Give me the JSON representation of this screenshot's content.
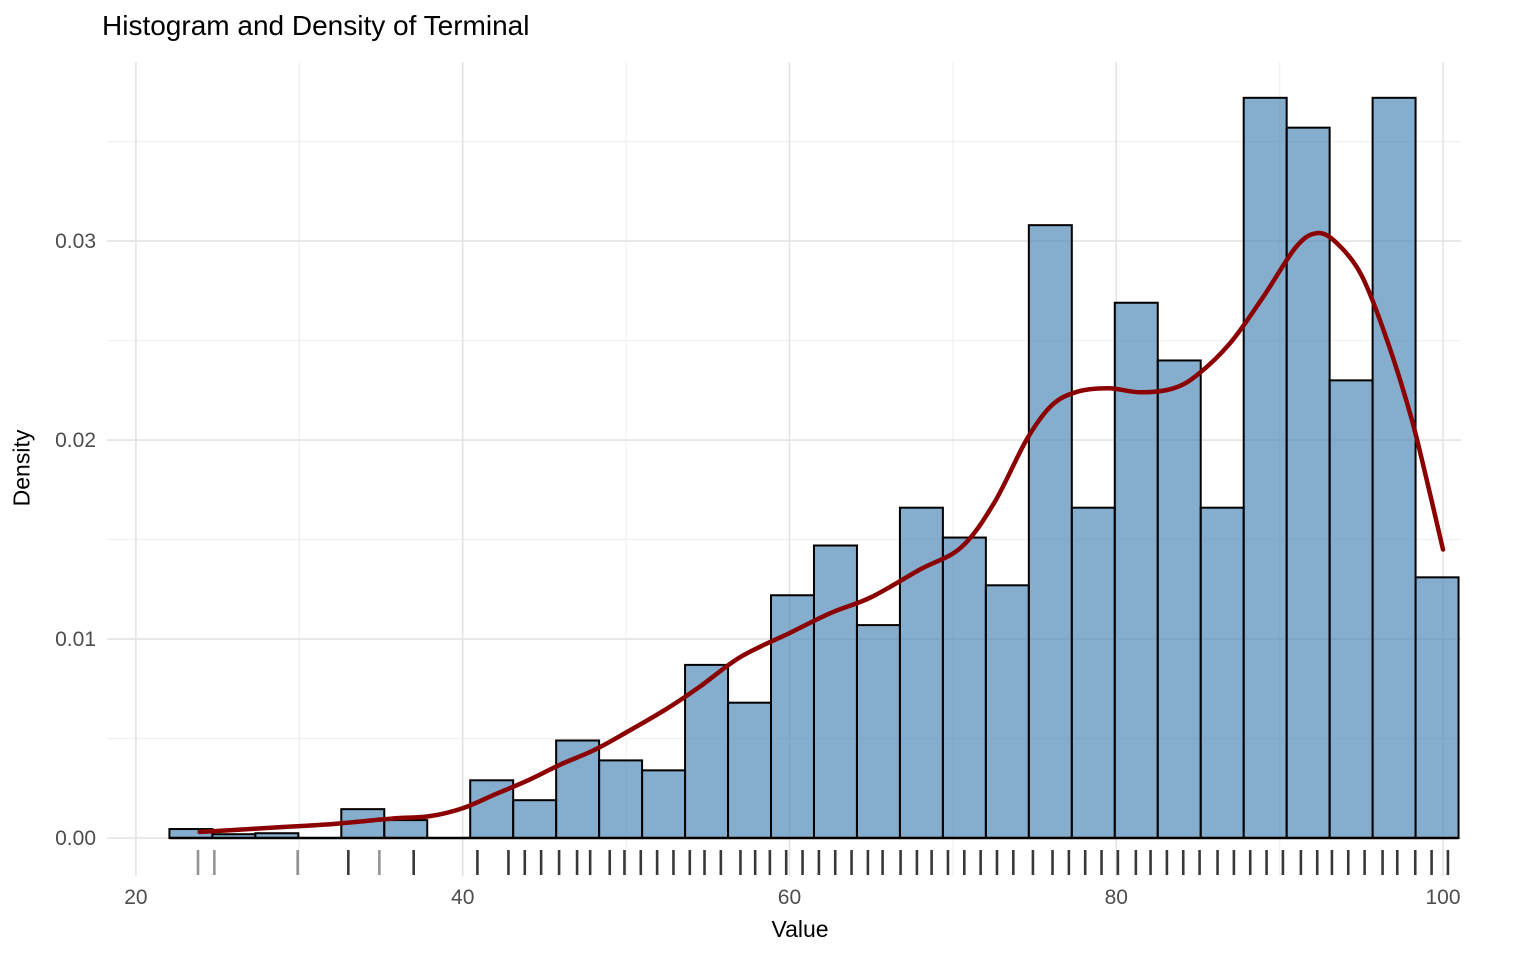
{
  "colors": {
    "background": "#FFFFFF",
    "bar_fill": "rgba(70,130,180,0.66)",
    "bar_border": "#000000",
    "density_curve": "#8B0000",
    "grid_major": "#E3E3E3",
    "grid_minor": "#F0F0F0",
    "axis_tick_text": "#4D4D4D",
    "title_text": "#000000",
    "baseline": "#000000",
    "rug": "rgba(0,0,0,0.78)",
    "rug_light": "rgba(0,0,0,0.42)"
  },
  "chart_data": {
    "type": "histogram+density",
    "title": "Histogram and Density of Terminal",
    "xlabel": "Value",
    "ylabel": "Density",
    "legend": false,
    "grid": true,
    "xlim": [
      18.23,
      101.1
    ],
    "ylim": [
      -0.00191,
      0.039
    ],
    "x_ticks": {
      "values": [
        20,
        40,
        60,
        80,
        100
      ],
      "labels": [
        "20",
        "40",
        "60",
        "80",
        "100"
      ]
    },
    "x_minor": [
      30,
      50,
      70,
      90
    ],
    "y_ticks": {
      "values": [
        0,
        0.01,
        0.02,
        0.03
      ],
      "labels": [
        "0.00",
        "0.01",
        "0.02",
        "0.03"
      ]
    },
    "y_minor": [
      0.005,
      0.015,
      0.025,
      0.035
    ],
    "histogram": {
      "bin_start": 22.05,
      "bin_width": 2.63,
      "densities": [
        0.00045,
        0.00019,
        0.00024,
        0,
        0.00145,
        0.0009,
        0,
        0.0029,
        0.0019,
        0.0049,
        0.0039,
        0.0034,
        0.0087,
        0.0068,
        0.0122,
        0.0147,
        0.0107,
        0.0166,
        0.0151,
        0.0127,
        0.0308,
        0.0166,
        0.0269,
        0.024,
        0.0166,
        0.0372,
        0.0357,
        0.023,
        0.0372,
        0.0131
      ]
    },
    "density_curve": [
      [
        23.9,
        0.0003
      ],
      [
        26,
        0.0004
      ],
      [
        28,
        0.0005
      ],
      [
        30,
        0.0006
      ],
      [
        32,
        0.0007
      ],
      [
        34,
        0.00085
      ],
      [
        36,
        0.001
      ],
      [
        38,
        0.0011
      ],
      [
        40,
        0.0015
      ],
      [
        42,
        0.0022
      ],
      [
        44,
        0.0029
      ],
      [
        46,
        0.0037
      ],
      [
        48,
        0.0044
      ],
      [
        50,
        0.0053
      ],
      [
        52.5,
        0.0065
      ],
      [
        54.5,
        0.0076
      ],
      [
        57,
        0.0091
      ],
      [
        60,
        0.0103
      ],
      [
        62.5,
        0.0113
      ],
      [
        65,
        0.0121
      ],
      [
        68,
        0.0135
      ],
      [
        70.5,
        0.0146
      ],
      [
        72.5,
        0.0168
      ],
      [
        74.5,
        0.02
      ],
      [
        76,
        0.0217
      ],
      [
        77.5,
        0.0224
      ],
      [
        79.5,
        0.0226
      ],
      [
        81.5,
        0.0224
      ],
      [
        83.5,
        0.0226
      ],
      [
        85,
        0.0233
      ],
      [
        87,
        0.0249
      ],
      [
        89,
        0.0272
      ],
      [
        91,
        0.0297
      ],
      [
        92.3,
        0.0304
      ],
      [
        93.5,
        0.0299
      ],
      [
        95,
        0.0283
      ],
      [
        96.5,
        0.0252
      ],
      [
        98,
        0.0213
      ],
      [
        99,
        0.018
      ],
      [
        100,
        0.0145
      ]
    ],
    "rug_values": [
      33.0,
      37.0,
      40.9,
      42.8,
      43.8,
      44.8,
      45.9,
      47.0,
      47.8,
      49.0,
      49.9,
      50.9,
      51.9,
      52.9,
      53.9,
      54.8,
      55.8,
      57.0,
      57.9,
      58.8,
      59.8,
      60.8,
      61.8,
      62.8,
      63.8,
      64.8,
      65.7,
      66.8,
      67.8,
      68.7,
      69.7,
      70.7,
      71.7,
      72.7,
      73.7,
      74.9,
      76.1,
      77.1,
      78.1,
      79.1,
      80.1,
      81.2,
      82.1,
      83.1,
      84.1,
      85.1,
      86.2,
      87.2,
      88.2,
      89.2,
      90.2,
      91.3,
      92.3,
      93.2,
      94.2,
      95.2,
      96.3,
      97.2,
      98.3,
      99.3,
      100.3
    ],
    "rug_light_values": [
      23.8,
      24.8,
      29.9,
      34.9
    ]
  }
}
